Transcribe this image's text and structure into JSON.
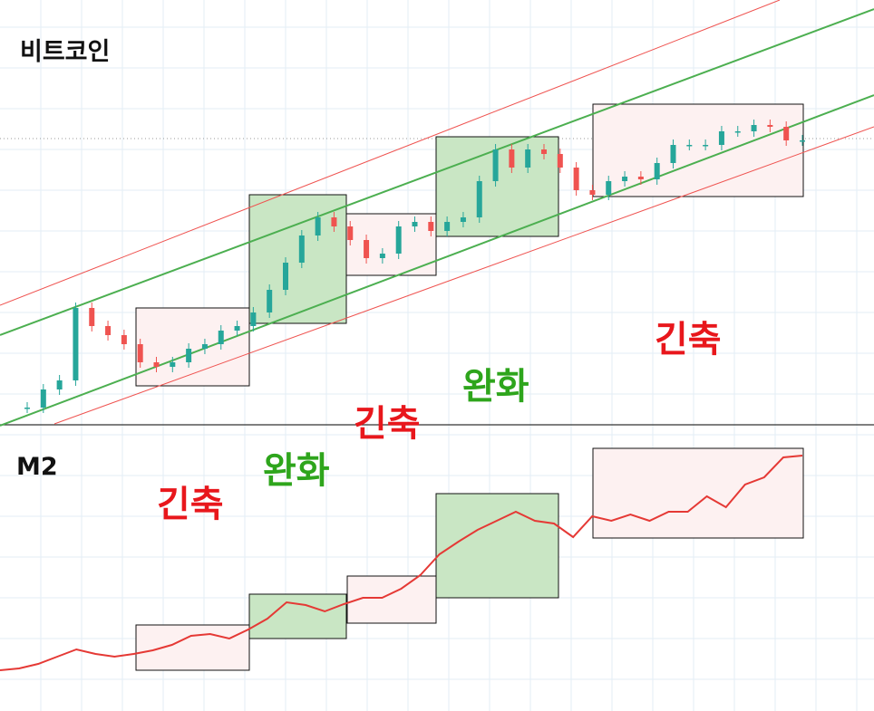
{
  "chart_data": [
    {
      "type": "candlestick",
      "title": "비트코인",
      "color_up": "#26a69a",
      "color_down": "#ef5350",
      "values": [
        18,
        38,
        48,
        128,
        108,
        98,
        88,
        68,
        63,
        68,
        83,
        88,
        103,
        108,
        123,
        148,
        178,
        208,
        228,
        218,
        203,
        183,
        188,
        218,
        223,
        213,
        223,
        228,
        268,
        303,
        283,
        303,
        298,
        283,
        258,
        253,
        268,
        273,
        270,
        288,
        308,
        308,
        308,
        323,
        323,
        330,
        328,
        313,
        313
      ],
      "ylim": [
        0,
        468
      ],
      "grid": true,
      "annotations": [
        {
          "text": "긴축",
          "color": "#e8171c"
        },
        {
          "text": "완화",
          "color": "#2ea51c"
        },
        {
          "text": "긴축",
          "color": "#e8171c"
        }
      ]
    },
    {
      "type": "line",
      "title": "M2",
      "color": "#e53935",
      "values": [
        45,
        47,
        52,
        60,
        68,
        63,
        60,
        63,
        67,
        73,
        83,
        85,
        80,
        90,
        102,
        120,
        117,
        110,
        118,
        125,
        125,
        135,
        150,
        173,
        187,
        200,
        210,
        220,
        210,
        207,
        192,
        215,
        210,
        217,
        210,
        220,
        220,
        237,
        225,
        250,
        258,
        280,
        282
      ],
      "ylim": [
        0,
        315
      ],
      "grid": true,
      "annotations": [
        {
          "text": "완화",
          "color": "#2ea51c"
        },
        {
          "text": "긴축",
          "color": "#e8171c"
        }
      ]
    }
  ]
}
